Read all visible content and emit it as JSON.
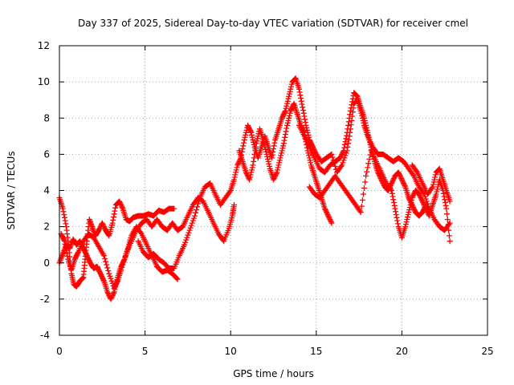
{
  "chart_data": {
    "type": "scatter",
    "title": "Day 337 of 2025, Sidereal Day-to-day VTEC variation (SDTVAR) for receiver cmel",
    "xlabel": "GPS time / hours",
    "ylabel": "SDTVAR / TECUs",
    "xlim": [
      0,
      25
    ],
    "ylim": [
      -4,
      12
    ],
    "xticks": [
      0,
      5,
      10,
      15,
      20,
      25
    ],
    "yticks": [
      -4,
      -2,
      0,
      2,
      4,
      6,
      8,
      10,
      12
    ],
    "grid": true,
    "marker": "+",
    "series": [
      {
        "name": "SDTVAR",
        "color": "#ff0000",
        "traces": [
          [
            [
              0.0,
              3.6
            ],
            [
              0.2,
              3.0
            ],
            [
              0.4,
              2.0
            ],
            [
              0.55,
              0.8
            ],
            [
              0.7,
              -0.6
            ],
            [
              0.85,
              -1.2
            ],
            [
              1.0,
              -1.3
            ],
            [
              1.2,
              -1.0
            ],
            [
              1.4,
              -0.8
            ],
            [
              1.5,
              0.2
            ],
            [
              1.6,
              1.2
            ],
            [
              1.75,
              2.4
            ],
            [
              1.9,
              2.0
            ],
            [
              2.1,
              1.5
            ],
            [
              2.3,
              1.8
            ],
            [
              2.5,
              2.2
            ],
            [
              2.7,
              1.8
            ],
            [
              2.9,
              1.5
            ],
            [
              3.1,
              2.2
            ],
            [
              3.3,
              3.2
            ],
            [
              3.5,
              3.4
            ],
            [
              3.7,
              3.0
            ],
            [
              3.9,
              2.4
            ],
            [
              4.1,
              2.3
            ],
            [
              4.3,
              2.5
            ],
            [
              4.6,
              2.6
            ],
            [
              4.9,
              2.6
            ],
            [
              5.2,
              2.7
            ],
            [
              5.5,
              2.6
            ],
            [
              5.8,
              2.9
            ],
            [
              6.1,
              2.8
            ],
            [
              6.4,
              3.0
            ],
            [
              6.7,
              3.0
            ]
          ],
          [
            [
              0.0,
              0.0
            ],
            [
              0.2,
              0.5
            ],
            [
              0.4,
              1.0
            ],
            [
              0.6,
              0.8
            ],
            [
              0.8,
              1.3
            ],
            [
              1.0,
              1.0
            ],
            [
              1.2,
              1.2
            ],
            [
              1.4,
              0.8
            ],
            [
              1.6,
              0.4
            ],
            [
              1.8,
              0.0
            ],
            [
              2.0,
              -0.3
            ],
            [
              2.2,
              -0.2
            ],
            [
              2.4,
              -0.6
            ],
            [
              2.6,
              -1.0
            ],
            [
              2.8,
              -1.6
            ],
            [
              3.0,
              -2.0
            ],
            [
              3.2,
              -1.6
            ],
            [
              3.4,
              -0.8
            ],
            [
              3.6,
              -0.2
            ],
            [
              3.8,
              0.2
            ],
            [
              4.0,
              0.8
            ],
            [
              4.2,
              1.5
            ],
            [
              4.5,
              2.0
            ],
            [
              4.8,
              1.6
            ],
            [
              5.1,
              1.0
            ],
            [
              5.4,
              0.4
            ],
            [
              5.7,
              -0.2
            ],
            [
              6.0,
              -0.5
            ],
            [
              6.3,
              -0.4
            ],
            [
              6.6,
              -0.6
            ],
            [
              6.9,
              -0.9
            ]
          ],
          [
            [
              0.1,
              1.6
            ],
            [
              0.3,
              1.2
            ],
            [
              0.5,
              0.2
            ],
            [
              0.7,
              -0.4
            ],
            [
              0.9,
              0.2
            ],
            [
              1.1,
              0.6
            ],
            [
              1.4,
              1.2
            ],
            [
              1.7,
              1.6
            ],
            [
              2.0,
              1.4
            ],
            [
              2.3,
              0.9
            ],
            [
              2.6,
              0.4
            ],
            [
              2.9,
              -0.6
            ],
            [
              3.2,
              -1.4
            ],
            [
              3.4,
              -1.0
            ],
            [
              3.6,
              -0.4
            ],
            [
              3.9,
              0.5
            ],
            [
              4.2,
              1.2
            ],
            [
              4.5,
              1.8
            ],
            [
              4.8,
              2.2
            ],
            [
              5.1,
              2.4
            ],
            [
              5.4,
              2.0
            ],
            [
              5.7,
              2.4
            ],
            [
              6.0,
              2.0
            ],
            [
              6.3,
              1.8
            ],
            [
              6.6,
              2.2
            ],
            [
              6.9,
              1.8
            ],
            [
              7.2,
              2.0
            ],
            [
              7.5,
              2.6
            ],
            [
              7.8,
              3.2
            ],
            [
              8.1,
              3.6
            ],
            [
              8.4,
              3.4
            ],
            [
              8.7,
              2.8
            ],
            [
              9.0,
              2.2
            ],
            [
              9.3,
              1.6
            ],
            [
              9.6,
              1.2
            ],
            [
              9.9,
              1.9
            ],
            [
              10.1,
              2.6
            ],
            [
              10.2,
              3.2
            ]
          ],
          [
            [
              4.6,
              1.2
            ],
            [
              4.9,
              0.6
            ],
            [
              5.2,
              0.3
            ],
            [
              5.5,
              0.5
            ],
            [
              5.8,
              0.2
            ],
            [
              6.1,
              0.0
            ],
            [
              6.4,
              -0.3
            ],
            [
              6.7,
              -0.3
            ],
            [
              7.0,
              0.4
            ],
            [
              7.3,
              1.0
            ],
            [
              7.6,
              1.8
            ],
            [
              7.9,
              2.6
            ],
            [
              8.2,
              3.6
            ],
            [
              8.5,
              4.2
            ],
            [
              8.8,
              4.4
            ],
            [
              9.1,
              3.8
            ],
            [
              9.4,
              3.2
            ],
            [
              9.7,
              3.6
            ],
            [
              10.0,
              4.0
            ],
            [
              10.2,
              4.6
            ],
            [
              10.4,
              5.4
            ],
            [
              10.6,
              5.8
            ],
            [
              10.8,
              6.8
            ],
            [
              11.0,
              7.6
            ],
            [
              11.2,
              7.2
            ],
            [
              11.4,
              6.4
            ],
            [
              11.6,
              5.8
            ],
            [
              11.8,
              6.4
            ],
            [
              12.0,
              7.0
            ],
            [
              12.2,
              6.4
            ],
            [
              12.4,
              5.8
            ],
            [
              12.6,
              6.8
            ],
            [
              12.8,
              7.4
            ],
            [
              13.0,
              8.0
            ],
            [
              13.2,
              8.4
            ],
            [
              13.4,
              9.2
            ],
            [
              13.6,
              10.0
            ],
            [
              13.8,
              10.2
            ],
            [
              14.0,
              9.6
            ],
            [
              14.2,
              8.6
            ],
            [
              14.4,
              7.6
            ],
            [
              14.6,
              6.8
            ],
            [
              14.8,
              6.4
            ],
            [
              15.0,
              6.0
            ],
            [
              15.3,
              5.6
            ],
            [
              15.6,
              5.8
            ],
            [
              15.9,
              6.0
            ],
            [
              16.2,
              5.0
            ],
            [
              16.5,
              5.4
            ],
            [
              16.8,
              6.2
            ],
            [
              17.0,
              7.4
            ],
            [
              17.2,
              8.8
            ],
            [
              17.4,
              9.0
            ],
            [
              17.6,
              8.4
            ],
            [
              17.8,
              7.6
            ],
            [
              18.0,
              7.0
            ],
            [
              18.3,
              6.4
            ],
            [
              18.6,
              6.0
            ],
            [
              18.9,
              6.0
            ],
            [
              19.2,
              5.8
            ],
            [
              19.5,
              5.6
            ],
            [
              19.8,
              5.8
            ],
            [
              20.1,
              5.6
            ],
            [
              20.4,
              5.2
            ],
            [
              20.7,
              4.8
            ],
            [
              21.0,
              4.2
            ],
            [
              21.3,
              3.8
            ],
            [
              21.6,
              3.0
            ],
            [
              21.9,
              2.4
            ],
            [
              22.2,
              2.0
            ],
            [
              22.5,
              1.8
            ],
            [
              22.8,
              2.2
            ]
          ],
          [
            [
              10.5,
              6.2
            ],
            [
              10.7,
              5.6
            ],
            [
              10.9,
              5.0
            ],
            [
              11.1,
              4.6
            ],
            [
              11.3,
              5.4
            ],
            [
              11.5,
              6.6
            ],
            [
              11.7,
              7.4
            ],
            [
              11.9,
              6.8
            ],
            [
              12.1,
              6.0
            ],
            [
              12.3,
              5.2
            ],
            [
              12.5,
              4.6
            ],
            [
              12.7,
              5.0
            ],
            [
              12.9,
              5.8
            ],
            [
              13.1,
              6.6
            ],
            [
              13.3,
              7.6
            ],
            [
              13.5,
              8.4
            ],
            [
              13.7,
              8.8
            ],
            [
              13.9,
              8.2
            ],
            [
              14.1,
              7.6
            ],
            [
              14.3,
              7.2
            ],
            [
              14.5,
              6.2
            ],
            [
              14.7,
              5.4
            ],
            [
              14.9,
              4.8
            ],
            [
              15.1,
              4.2
            ],
            [
              15.3,
              3.6
            ],
            [
              15.5,
              3.0
            ],
            [
              15.7,
              2.6
            ],
            [
              15.9,
              2.2
            ]
          ],
          [
            [
              14.0,
              7.6
            ],
            [
              14.3,
              7.0
            ],
            [
              14.6,
              6.4
            ],
            [
              14.9,
              5.8
            ],
            [
              15.2,
              5.2
            ],
            [
              15.5,
              5.0
            ],
            [
              15.8,
              5.4
            ],
            [
              16.1,
              5.6
            ],
            [
              16.4,
              5.8
            ],
            [
              16.6,
              6.2
            ],
            [
              16.8,
              7.2
            ],
            [
              17.0,
              8.4
            ],
            [
              17.2,
              9.4
            ],
            [
              17.4,
              9.2
            ],
            [
              17.6,
              8.6
            ],
            [
              17.8,
              8.0
            ],
            [
              18.0,
              7.2
            ],
            [
              18.2,
              6.4
            ],
            [
              18.4,
              5.6
            ],
            [
              18.6,
              5.0
            ],
            [
              18.8,
              4.6
            ],
            [
              19.0,
              4.2
            ],
            [
              19.2,
              4.0
            ],
            [
              19.4,
              4.4
            ],
            [
              19.6,
              4.8
            ],
            [
              19.8,
              5.0
            ],
            [
              20.0,
              4.6
            ],
            [
              20.2,
              4.2
            ],
            [
              20.4,
              3.6
            ],
            [
              20.6,
              3.2
            ],
            [
              20.8,
              2.8
            ],
            [
              21.0,
              2.6
            ],
            [
              21.2,
              2.8
            ],
            [
              21.4,
              3.2
            ],
            [
              21.6,
              2.8
            ]
          ],
          [
            [
              14.6,
              4.2
            ],
            [
              14.9,
              3.8
            ],
            [
              15.2,
              3.6
            ],
            [
              15.5,
              4.0
            ],
            [
              15.8,
              4.4
            ],
            [
              16.1,
              4.8
            ],
            [
              16.4,
              4.4
            ],
            [
              16.7,
              4.0
            ],
            [
              17.0,
              3.6
            ],
            [
              17.3,
              3.2
            ],
            [
              17.6,
              2.8
            ],
            [
              17.9,
              4.8
            ],
            [
              18.2,
              6.2
            ],
            [
              18.5,
              5.6
            ],
            [
              18.8,
              5.0
            ],
            [
              19.1,
              4.4
            ],
            [
              19.4,
              4.0
            ],
            [
              19.6,
              3.0
            ],
            [
              19.8,
              2.0
            ],
            [
              20.0,
              1.4
            ],
            [
              20.2,
              2.0
            ],
            [
              20.4,
              2.8
            ],
            [
              20.6,
              3.6
            ],
            [
              20.8,
              4.0
            ],
            [
              21.0,
              3.8
            ],
            [
              21.2,
              3.4
            ],
            [
              21.4,
              3.0
            ],
            [
              21.6,
              2.6
            ],
            [
              21.8,
              3.2
            ],
            [
              22.0,
              3.8
            ],
            [
              22.2,
              4.6
            ],
            [
              22.4,
              4.0
            ],
            [
              22.6,
              3.0
            ],
            [
              22.8,
              1.2
            ]
          ],
          [
            [
              20.6,
              5.4
            ],
            [
              20.9,
              5.0
            ],
            [
              21.2,
              4.4
            ],
            [
              21.5,
              3.8
            ],
            [
              21.8,
              4.2
            ],
            [
              22.0,
              5.0
            ],
            [
              22.2,
              5.2
            ],
            [
              22.4,
              4.6
            ],
            [
              22.6,
              4.0
            ],
            [
              22.8,
              3.4
            ]
          ]
        ]
      }
    ]
  }
}
